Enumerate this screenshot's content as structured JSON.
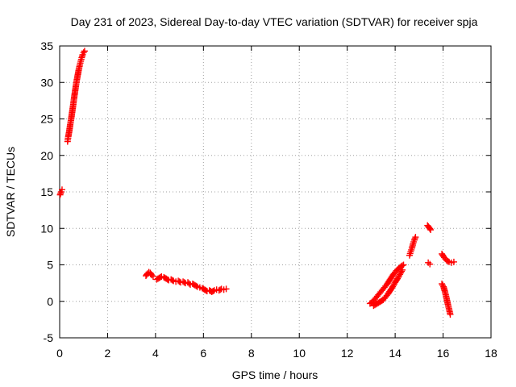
{
  "chart_data": {
    "type": "scatter",
    "title": "Day 231 of 2023, Sidereal Day-to-day VTEC variation (SDTVAR) for receiver spja",
    "xlabel": "GPS time / hours",
    "ylabel": "SDTVAR / TECUs",
    "xlim": [
      0,
      18
    ],
    "ylim": [
      -5,
      35
    ],
    "xticks": [
      "0",
      "2",
      "4",
      "6",
      "8",
      "10",
      "12",
      "14",
      "16",
      "18"
    ],
    "yticks": [
      "-5",
      "0",
      "5",
      "10",
      "15",
      "20",
      "25",
      "30",
      "35"
    ],
    "grid": true,
    "marker": "plus",
    "color": "#ff0000",
    "series": [
      {
        "name": "SDTVAR",
        "segments": [
          [
            [
              0.02,
              14.6
            ],
            [
              0.06,
              15.0
            ],
            [
              0.1,
              15.3
            ]
          ],
          [
            [
              0.33,
              21.9
            ],
            [
              0.36,
              22.6
            ],
            [
              0.4,
              23.3
            ],
            [
              0.44,
              24.2
            ],
            [
              0.48,
              25.0
            ],
            [
              0.52,
              25.9
            ],
            [
              0.56,
              26.8
            ],
            [
              0.6,
              27.8
            ],
            [
              0.64,
              28.7
            ],
            [
              0.68,
              29.6
            ],
            [
              0.72,
              30.4
            ],
            [
              0.76,
              31.1
            ],
            [
              0.8,
              31.8
            ],
            [
              0.84,
              32.4
            ],
            [
              0.88,
              32.9
            ],
            [
              0.92,
              33.4
            ],
            [
              0.96,
              33.8
            ],
            [
              1.0,
              34.1
            ],
            [
              1.04,
              34.3
            ]
          ],
          [
            [
              3.6,
              3.5
            ],
            [
              3.66,
              3.8
            ],
            [
              3.72,
              4.0
            ],
            [
              3.78,
              3.9
            ],
            [
              3.84,
              3.6
            ],
            [
              3.9,
              3.4
            ]
          ],
          [
            [
              4.05,
              3.0
            ],
            [
              4.15,
              3.2
            ],
            [
              4.25,
              3.4
            ],
            [
              4.35,
              3.3
            ],
            [
              4.45,
              3.1
            ],
            [
              4.55,
              2.9
            ],
            [
              4.65,
              3.0
            ],
            [
              4.75,
              2.8
            ],
            [
              4.85,
              2.7
            ],
            [
              4.95,
              2.8
            ],
            [
              5.05,
              2.6
            ],
            [
              5.15,
              2.7
            ],
            [
              5.25,
              2.5
            ],
            [
              5.35,
              2.6
            ],
            [
              5.45,
              2.3
            ],
            [
              5.55,
              2.4
            ],
            [
              5.65,
              2.2
            ],
            [
              5.75,
              2.0
            ],
            [
              5.85,
              1.9
            ],
            [
              5.95,
              1.8
            ],
            [
              6.05,
              1.6
            ],
            [
              6.15,
              1.4
            ],
            [
              6.25,
              1.5
            ],
            [
              6.35,
              1.3
            ],
            [
              6.45,
              1.5
            ],
            [
              6.55,
              1.6
            ],
            [
              6.65,
              1.5
            ],
            [
              6.75,
              1.7
            ],
            [
              6.85,
              1.6
            ],
            [
              6.95,
              1.7
            ]
          ],
          [
            [
              12.95,
              -0.3
            ],
            [
              13.05,
              -0.1
            ],
            [
              13.15,
              0.3
            ],
            [
              13.25,
              0.7
            ],
            [
              13.35,
              1.1
            ],
            [
              13.45,
              1.5
            ],
            [
              13.55,
              1.9
            ],
            [
              13.65,
              2.3
            ],
            [
              13.75,
              2.8
            ],
            [
              13.85,
              3.3
            ],
            [
              13.95,
              3.8
            ],
            [
              14.05,
              4.2
            ],
            [
              14.15,
              4.5
            ],
            [
              14.25,
              4.8
            ],
            [
              14.35,
              5.0
            ]
          ],
          [
            [
              13.1,
              -0.6
            ],
            [
              13.2,
              -0.4
            ],
            [
              13.3,
              -0.2
            ],
            [
              13.4,
              0.0
            ],
            [
              13.5,
              0.2
            ],
            [
              13.6,
              0.6
            ],
            [
              13.7,
              1.0
            ],
            [
              13.8,
              1.5
            ],
            [
              13.9,
              2.0
            ],
            [
              14.0,
              2.6
            ],
            [
              14.1,
              3.1
            ],
            [
              14.2,
              3.7
            ],
            [
              14.3,
              4.3
            ]
          ],
          [
            [
              14.6,
              6.3
            ],
            [
              14.65,
              6.8
            ],
            [
              14.7,
              7.3
            ],
            [
              14.75,
              7.9
            ],
            [
              14.8,
              8.4
            ],
            [
              14.85,
              8.8
            ]
          ],
          [
            [
              15.35,
              10.4
            ],
            [
              15.42,
              10.1
            ],
            [
              15.48,
              9.8
            ]
          ],
          [
            [
              15.38,
              5.3
            ],
            [
              15.45,
              5.1
            ]
          ],
          [
            [
              15.95,
              6.5
            ],
            [
              16.05,
              6.0
            ],
            [
              16.15,
              5.6
            ],
            [
              16.25,
              5.4
            ],
            [
              16.35,
              5.3
            ],
            [
              16.45,
              5.4
            ]
          ],
          [
            [
              15.95,
              2.4
            ],
            [
              16.02,
              2.0
            ],
            [
              16.08,
              1.3
            ],
            [
              16.14,
              0.5
            ],
            [
              16.2,
              -0.4
            ],
            [
              16.26,
              -1.2
            ],
            [
              16.3,
              -1.8
            ]
          ]
        ]
      }
    ]
  }
}
